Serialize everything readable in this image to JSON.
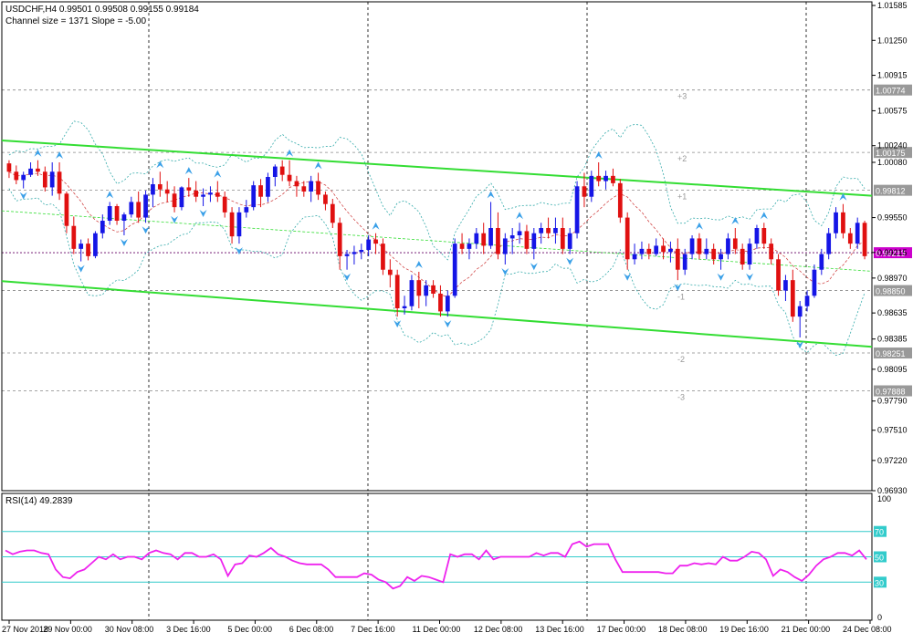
{
  "header": {
    "symbol_line": "USDCHF,H4  0.99501 0.99508 0.99155 0.99184",
    "channel_line": "Channel size = 1371 Slope = -5.00"
  },
  "colors": {
    "bull": "#1515e6",
    "bear": "#e01010",
    "channel": "#33dd33",
    "rsi": "#ee22ee",
    "rsi_levels": "#33cccc",
    "bands": "#33aaaa",
    "fractal": "#3aa0e8",
    "current_price_bg": "#cc00cc"
  },
  "rsi_header": "RSI(14) 49.2839",
  "chart_data": [
    {
      "type": "candlestick",
      "ylim": [
        0.9693,
        1.0162
      ],
      "y_ticks": [
        "1.01585",
        "1.01250",
        "1.00915",
        "1.00575",
        "1.00240",
        "1.00080",
        "0.99550",
        "0.99215",
        "0.98970",
        "0.98635",
        "0.98385",
        "0.98095",
        "0.97790",
        "0.97510",
        "0.97220",
        "0.96930"
      ],
      "x_ticks": [
        "27 Nov 2018",
        "29 Nov 00:00",
        "30 Nov 08:00",
        "3 Dec 16:00",
        "5 Dec 00:00",
        "6 Dec 08:00",
        "7 Dec 16:00",
        "11 Dec 00:00",
        "12 Dec 08:00",
        "13 Dec 16:00",
        "17 Dec 00:00",
        "18 Dec 08:00",
        "19 Dec 16:00",
        "21 Dec 00:00",
        "24 Dec 08:00"
      ],
      "price_labels": [
        {
          "value": "1.00774"
        },
        {
          "value": "1.00175"
        },
        {
          "value": "0.99812"
        },
        {
          "value": "0.99213"
        },
        {
          "value": "0.98850"
        },
        {
          "value": "0.98251"
        },
        {
          "value": "0.97888"
        }
      ],
      "std_labels": [
        "+3",
        "+2",
        "+1",
        "-1",
        "-2",
        "-3"
      ],
      "channel": {
        "upper": [
          1.0029,
          0.9976
        ],
        "lower": [
          0.9894,
          0.9831
        ]
      },
      "series": [
        {
          "values": [
            [
              1.0007,
              1.001,
              0.9993,
              0.9999
            ],
            [
              0.9999,
              1.0005,
              0.9987,
              0.9991
            ],
            [
              0.9991,
              0.9999,
              0.9983,
              0.9996
            ],
            [
              0.9996,
              1.0008,
              0.9994,
              1.0002
            ],
            [
              1.0002,
              1.001,
              0.9995,
              0.9999
            ],
            [
              0.9999,
              1.0004,
              0.998,
              0.9984
            ],
            [
              0.9984,
              1.0008,
              0.9976,
              0.9999
            ],
            [
              0.9999,
              1.0008,
              0.9972,
              0.9978
            ],
            [
              0.9978,
              0.998,
              0.994,
              0.9947
            ],
            [
              0.9947,
              0.9956,
              0.992,
              0.9925
            ],
            [
              0.9925,
              0.9934,
              0.9913,
              0.993
            ],
            [
              0.993,
              0.9935,
              0.9914,
              0.9918
            ],
            [
              0.9918,
              0.9942,
              0.9916,
              0.994
            ],
            [
              0.994,
              0.9958,
              0.9935,
              0.9952
            ],
            [
              0.9952,
              0.997,
              0.9948,
              0.9966
            ],
            [
              0.9966,
              0.9968,
              0.9948,
              0.9952
            ],
            [
              0.9952,
              0.996,
              0.9938,
              0.9958
            ],
            [
              0.9958,
              0.9975,
              0.9955,
              0.997
            ],
            [
              0.997,
              0.998,
              0.995,
              0.9955
            ],
            [
              0.9955,
              0.9981,
              0.995,
              0.9977
            ],
            [
              0.9977,
              0.9993,
              0.9965,
              0.9987
            ],
            [
              0.9987,
              0.9999,
              0.9975,
              0.9982
            ],
            [
              0.9982,
              0.999,
              0.997,
              0.9978
            ],
            [
              0.9978,
              0.9985,
              0.996,
              0.9965
            ],
            [
              0.9965,
              0.9985,
              0.9962,
              0.9984
            ],
            [
              0.9984,
              0.9993,
              0.9975,
              0.9981
            ],
            [
              0.9981,
              0.999,
              0.997,
              0.9975
            ],
            [
              0.9975,
              0.9983,
              0.9966,
              0.9977
            ],
            [
              0.9977,
              0.9985,
              0.997,
              0.9979
            ],
            [
              0.9979,
              0.999,
              0.997,
              0.9975
            ],
            [
              0.9975,
              0.998,
              0.9955,
              0.996
            ],
            [
              0.996,
              0.9965,
              0.993,
              0.9937
            ],
            [
              0.9937,
              0.9965,
              0.993,
              0.996
            ],
            [
              0.996,
              0.9972,
              0.9955,
              0.9965
            ],
            [
              0.9965,
              0.999,
              0.9962,
              0.9986
            ],
            [
              0.9986,
              0.9992,
              0.9965,
              0.9975
            ],
            [
              0.9975,
              0.9998,
              0.997,
              0.9994
            ],
            [
              0.9994,
              1.0006,
              0.9985,
              1.0004
            ],
            [
              1.0004,
              1.001,
              0.999,
              0.9996
            ],
            [
              0.9996,
              1.001,
              0.9985,
              0.999
            ],
            [
              0.999,
              0.9995,
              0.9975,
              0.9985
            ],
            [
              0.9985,
              0.999,
              0.9975,
              0.998
            ],
            [
              0.998,
              0.9995,
              0.997,
              0.999
            ],
            [
              0.999,
              0.9998,
              0.9972,
              0.9977
            ],
            [
              0.9977,
              0.998,
              0.9962,
              0.9968
            ],
            [
              0.9968,
              0.9973,
              0.9945,
              0.995
            ],
            [
              0.995,
              0.9955,
              0.9905,
              0.9918
            ],
            [
              0.9918,
              0.9924,
              0.9905,
              0.992
            ],
            [
              0.992,
              0.9928,
              0.991,
              0.9922
            ],
            [
              0.9922,
              0.993,
              0.9915,
              0.9924
            ],
            [
              0.9924,
              0.9938,
              0.9918,
              0.9934
            ],
            [
              0.9934,
              0.994,
              0.992,
              0.993
            ],
            [
              0.993,
              0.9935,
              0.99,
              0.9905
            ],
            [
              0.9905,
              0.9915,
              0.9888,
              0.99
            ],
            [
              0.99,
              0.9905,
              0.986,
              0.9868
            ],
            [
              0.9868,
              0.988,
              0.9862,
              0.987
            ],
            [
              0.987,
              0.99,
              0.9866,
              0.9895
            ],
            [
              0.9895,
              0.9903,
              0.9868,
              0.988
            ],
            [
              0.988,
              0.9895,
              0.987,
              0.989
            ],
            [
              0.989,
              0.9895,
              0.9878,
              0.9882
            ],
            [
              0.9882,
              0.989,
              0.986,
              0.9865
            ],
            [
              0.9865,
              0.9885,
              0.986,
              0.988
            ],
            [
              0.988,
              0.9935,
              0.9878,
              0.993
            ],
            [
              0.993,
              0.994,
              0.992,
              0.9925
            ],
            [
              0.9925,
              0.9935,
              0.9915,
              0.993
            ],
            [
              0.993,
              0.9945,
              0.9925,
              0.994
            ],
            [
              0.994,
              0.995,
              0.992,
              0.9928
            ],
            [
              0.9928,
              0.997,
              0.9925,
              0.9945
            ],
            [
              0.9945,
              0.996,
              0.9915,
              0.992
            ],
            [
              0.992,
              0.994,
              0.991,
              0.9935
            ],
            [
              0.9935,
              0.9945,
              0.992,
              0.9938
            ],
            [
              0.9938,
              0.995,
              0.993,
              0.9942
            ],
            [
              0.9942,
              0.9948,
              0.992,
              0.9925
            ],
            [
              0.9925,
              0.9945,
              0.9915,
              0.994
            ],
            [
              0.994,
              0.995,
              0.993,
              0.9945
            ],
            [
              0.9945,
              0.9955,
              0.9935,
              0.994
            ],
            [
              0.994,
              0.9955,
              0.993,
              0.9945
            ],
            [
              0.9945,
              0.9955,
              0.992,
              0.9925
            ],
            [
              0.9925,
              0.9945,
              0.992,
              0.994
            ],
            [
              0.994,
              0.999,
              0.9935,
              0.9985
            ],
            [
              0.9985,
              0.9998,
              0.9965,
              0.9975
            ],
            [
              0.9975,
              1.0,
              0.997,
              0.9995
            ],
            [
              0.9995,
              1.0008,
              0.9985,
              0.999
            ],
            [
              0.999,
              1.0,
              0.9982,
              0.9995
            ],
            [
              0.9995,
              1.0002,
              0.9985,
              0.9988
            ],
            [
              0.9988,
              0.9992,
              0.995,
              0.9955
            ],
            [
              0.9955,
              0.996,
              0.9905,
              0.9915
            ],
            [
              0.9915,
              0.993,
              0.991,
              0.992
            ],
            [
              0.992,
              0.9932,
              0.9915,
              0.9925
            ],
            [
              0.9925,
              0.993,
              0.9915,
              0.992
            ],
            [
              0.992,
              0.9935,
              0.9918,
              0.9928
            ],
            [
              0.9928,
              0.9935,
              0.9915,
              0.9922
            ],
            [
              0.9922,
              0.9932,
              0.9912,
              0.9925
            ],
            [
              0.9925,
              0.9935,
              0.9895,
              0.9905
            ],
            [
              0.9905,
              0.9925,
              0.99,
              0.992
            ],
            [
              0.992,
              0.9938,
              0.9915,
              0.9935
            ],
            [
              0.9935,
              0.994,
              0.9915,
              0.992
            ],
            [
              0.992,
              0.9935,
              0.9915,
              0.9925
            ],
            [
              0.9925,
              0.993,
              0.991,
              0.9915
            ],
            [
              0.9915,
              0.9925,
              0.9905,
              0.992
            ],
            [
              0.992,
              0.994,
              0.9915,
              0.9935
            ],
            [
              0.9935,
              0.9945,
              0.992,
              0.9925
            ],
            [
              0.9925,
              0.993,
              0.9905,
              0.991
            ],
            [
              0.991,
              0.9935,
              0.9905,
              0.993
            ],
            [
              0.993,
              0.9948,
              0.9925,
              0.9945
            ],
            [
              0.9945,
              0.995,
              0.9925,
              0.993
            ],
            [
              0.993,
              0.9935,
              0.991,
              0.9915
            ],
            [
              0.9915,
              0.992,
              0.988,
              0.9885
            ],
            [
              0.9885,
              0.99,
              0.9875,
              0.9895
            ],
            [
              0.9895,
              0.9905,
              0.9855,
              0.986
            ],
            [
              0.986,
              0.9875,
              0.984,
              0.987
            ],
            [
              0.987,
              0.9885,
              0.9865,
              0.988
            ],
            [
              0.988,
              0.991,
              0.9878,
              0.9905
            ],
            [
              0.9905,
              0.9925,
              0.99,
              0.992
            ],
            [
              0.992,
              0.9945,
              0.9915,
              0.994
            ],
            [
              0.994,
              0.9965,
              0.9935,
              0.996
            ],
            [
              0.996,
              0.9968,
              0.9935,
              0.994
            ],
            [
              0.994,
              0.9945,
              0.9925,
              0.993
            ],
            [
              0.993,
              0.9955,
              0.9925,
              0.995
            ],
            [
              0.995,
              0.9952,
              0.9915,
              0.9918
            ]
          ]
        }
      ]
    },
    {
      "type": "line",
      "title": "RSI(14) 49.2839",
      "ylim": [
        0,
        100
      ],
      "y_ticks": [
        "100",
        "70",
        "50",
        "30",
        "0"
      ],
      "levels": [
        "70",
        "50",
        "30"
      ],
      "series": [
        {
          "values": [
            55,
            52,
            54,
            55,
            55,
            53,
            52,
            40,
            34,
            33,
            38,
            40,
            45,
            50,
            48,
            52,
            48,
            50,
            50,
            48,
            53,
            55,
            53,
            52,
            48,
            53,
            53,
            50,
            50,
            52,
            48,
            35,
            44,
            45,
            51,
            50,
            53,
            57,
            52,
            50,
            47,
            45,
            44,
            44,
            44,
            40,
            34,
            34,
            34,
            34,
            37,
            36,
            32,
            30,
            25,
            27,
            34,
            31,
            35,
            34,
            32,
            30,
            52,
            50,
            52,
            52,
            48,
            55,
            48,
            50,
            50,
            50,
            50,
            50,
            53,
            51,
            53,
            53,
            50,
            60,
            62,
            58,
            60,
            60,
            60,
            48,
            38,
            38,
            38,
            38,
            38,
            38,
            37,
            37,
            43,
            43,
            45,
            44,
            45,
            44,
            50,
            47,
            47,
            50,
            54,
            53,
            48,
            35,
            40,
            38,
            34,
            31,
            36,
            43,
            48,
            50,
            53,
            53,
            51,
            55,
            48
          ]
        }
      ]
    }
  ]
}
